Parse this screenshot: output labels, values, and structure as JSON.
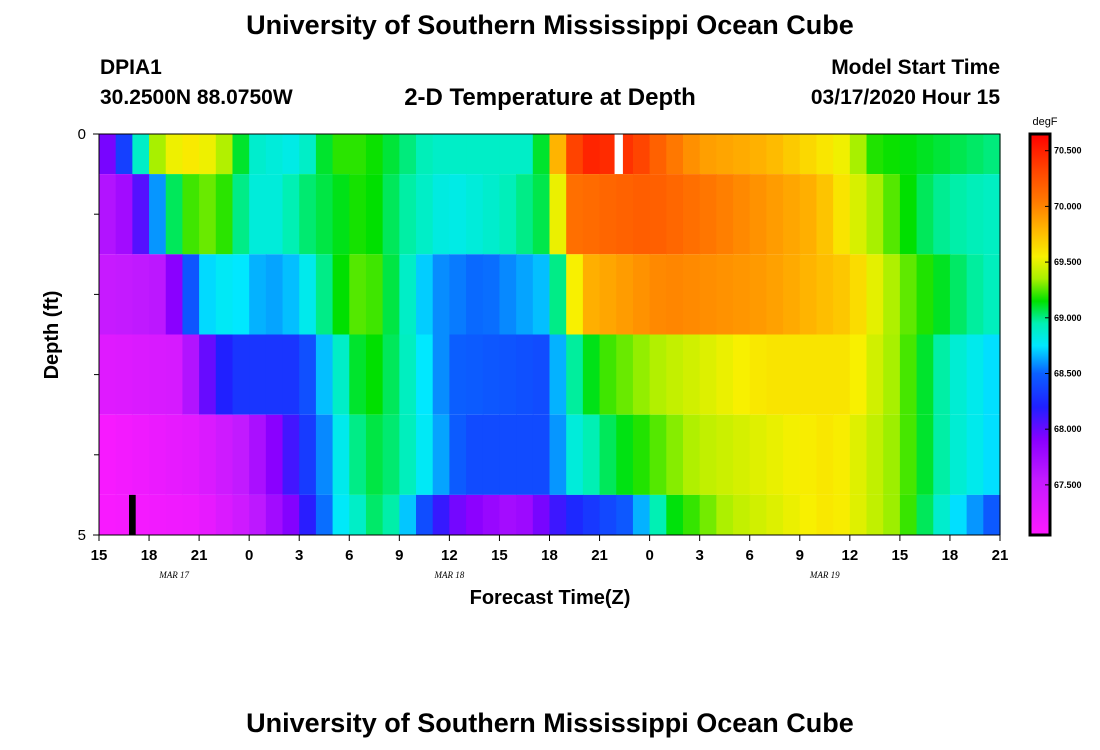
{
  "header": {
    "title": "University of Southern Mississippi Ocean Cube",
    "station": "DPIA1",
    "coords": "30.2500N 88.0750W",
    "subtitle": "2-D Temperature at Depth",
    "model_label": "Model Start Time",
    "model_time": "03/17/2020 Hour 15"
  },
  "footer": {
    "title": "University of Southern Mississippi Ocean Cube"
  },
  "chart_data": {
    "type": "heatmap",
    "title": "2-D Temperature at Depth",
    "xlabel": "Forecast Time(Z)",
    "ylabel": "Depth (ft)",
    "units": "degF",
    "x_start_hour": 0,
    "x_step_hours": 1,
    "x_range_hours": [
      0,
      54
    ],
    "x_tick_hours": [
      0,
      3,
      6,
      9,
      12,
      15,
      18,
      21,
      24,
      27,
      30,
      33,
      36,
      39,
      42,
      45,
      48,
      51,
      54
    ],
    "x_tick_labels": [
      "15",
      "18",
      "21",
      "0",
      "3",
      "6",
      "9",
      "12",
      "15",
      "18",
      "21",
      "0",
      "3",
      "6",
      "9",
      "12",
      "15",
      "18",
      "21"
    ],
    "date_labels": [
      {
        "text": "MAR 17",
        "hour": 4.5
      },
      {
        "text": "MAR 18",
        "hour": 21
      },
      {
        "text": "MAR 19",
        "hour": 43.5
      }
    ],
    "y_range_ft": [
      0,
      5
    ],
    "y_tick_labels": [
      {
        "value": 0,
        "text": "0"
      },
      {
        "value": 5,
        "text": "5"
      }
    ],
    "y_minor_ticks_ft": [
      1,
      2,
      3,
      4
    ],
    "depth_bands": [
      {
        "top": 0,
        "bottom": 0.5,
        "anchors": [
          [
            0,
            67.8
          ],
          [
            1,
            68.1
          ],
          [
            2,
            68.6
          ],
          [
            3,
            69.2
          ],
          [
            4,
            69.5
          ],
          [
            6,
            69.6
          ],
          [
            8,
            69.3
          ],
          [
            9,
            68.9
          ],
          [
            12,
            68.8
          ],
          [
            14,
            69.2
          ],
          [
            16,
            69.2
          ],
          [
            20,
            68.9
          ],
          [
            26,
            68.9
          ],
          [
            27,
            69.3
          ],
          [
            27.8,
            70.1
          ],
          [
            29,
            70.5
          ],
          [
            32,
            70.4
          ],
          [
            34,
            70.1
          ],
          [
            36,
            69.9
          ],
          [
            40,
            69.8
          ],
          [
            45,
            69.5
          ],
          [
            46,
            69.2
          ],
          [
            50,
            69.1
          ],
          [
            54,
            69.0
          ]
        ],
        "missing": [
          [
            30.9,
            31.4
          ]
        ]
      },
      {
        "top": 0.5,
        "bottom": 1.5,
        "anchors": [
          [
            0,
            67.6
          ],
          [
            2,
            67.8
          ],
          [
            3,
            68.3
          ],
          [
            4,
            68.9
          ],
          [
            5,
            69.2
          ],
          [
            7,
            69.3
          ],
          [
            9,
            68.9
          ],
          [
            10,
            68.8
          ],
          [
            12,
            69.0
          ],
          [
            14,
            69.1
          ],
          [
            16,
            69.2
          ],
          [
            18,
            69.0
          ],
          [
            21,
            68.8
          ],
          [
            24,
            68.9
          ],
          [
            27,
            69.1
          ],
          [
            27.6,
            69.6
          ],
          [
            28.5,
            70.1
          ],
          [
            33,
            70.2
          ],
          [
            38,
            70.0
          ],
          [
            43,
            69.8
          ],
          [
            46,
            69.4
          ],
          [
            50,
            69.0
          ],
          [
            54,
            68.9
          ]
        ],
        "missing": []
      },
      {
        "top": 1.5,
        "bottom": 2.5,
        "anchors": [
          [
            0,
            67.5
          ],
          [
            4,
            67.6
          ],
          [
            5,
            68.2
          ],
          [
            6,
            68.7
          ],
          [
            8,
            68.8
          ],
          [
            10,
            68.6
          ],
          [
            12,
            68.7
          ],
          [
            14,
            69.1
          ],
          [
            16,
            69.3
          ],
          [
            18,
            69.0
          ],
          [
            20,
            68.6
          ],
          [
            23,
            68.5
          ],
          [
            27,
            68.7
          ],
          [
            28,
            69.3
          ],
          [
            29,
            69.8
          ],
          [
            34,
            70.0
          ],
          [
            40,
            69.9
          ],
          [
            45,
            69.7
          ],
          [
            48,
            69.3
          ],
          [
            52,
            69.0
          ],
          [
            54,
            68.9
          ]
        ],
        "missing": []
      },
      {
        "top": 2.5,
        "bottom": 3.5,
        "anchors": [
          [
            0,
            67.3
          ],
          [
            5,
            67.4
          ],
          [
            6,
            67.9
          ],
          [
            8,
            68.3
          ],
          [
            12,
            68.3
          ],
          [
            14,
            68.8
          ],
          [
            16,
            69.2
          ],
          [
            18,
            69.0
          ],
          [
            21,
            68.5
          ],
          [
            27,
            68.4
          ],
          [
            28,
            68.9
          ],
          [
            30,
            69.2
          ],
          [
            34,
            69.4
          ],
          [
            40,
            69.6
          ],
          [
            45,
            69.6
          ],
          [
            48,
            69.3
          ],
          [
            51,
            68.9
          ],
          [
            54,
            68.7
          ]
        ],
        "missing": []
      },
      {
        "top": 3.5,
        "bottom": 4.5,
        "anchors": [
          [
            0,
            67.1
          ],
          [
            6,
            67.3
          ],
          [
            9,
            67.6
          ],
          [
            12,
            68.2
          ],
          [
            14,
            68.7
          ],
          [
            16,
            69.1
          ],
          [
            18,
            69.0
          ],
          [
            22,
            68.4
          ],
          [
            27,
            68.4
          ],
          [
            28,
            68.8
          ],
          [
            31,
            69.1
          ],
          [
            36,
            69.4
          ],
          [
            44,
            69.6
          ],
          [
            48,
            69.3
          ],
          [
            51,
            68.9
          ],
          [
            54,
            68.7
          ]
        ],
        "missing": []
      },
      {
        "top": 4.5,
        "bottom": 5,
        "anchors": [
          [
            0,
            67.1
          ],
          [
            6,
            67.2
          ],
          [
            9,
            67.5
          ],
          [
            12,
            68.0
          ],
          [
            14,
            68.7
          ],
          [
            17,
            69.1
          ],
          [
            21,
            68.0
          ],
          [
            25,
            67.7
          ],
          [
            28,
            68.2
          ],
          [
            32,
            68.5
          ],
          [
            34,
            69.1
          ],
          [
            38,
            69.4
          ],
          [
            44,
            69.6
          ],
          [
            48,
            69.3
          ],
          [
            51,
            68.8
          ],
          [
            54,
            68.4
          ]
        ],
        "missing": [
          [
            1.8,
            2.2
          ]
        ]
      }
    ],
    "colorbar": {
      "unit_label": "degF",
      "vmin": 67.05,
      "vmax": 70.65,
      "tick_values": [
        67.5,
        68.0,
        68.5,
        69.0,
        69.5,
        70.0,
        70.5
      ],
      "tick_labels": [
        "67.500",
        "68.000",
        "68.500",
        "69.000",
        "69.500",
        "70.000",
        "70.500"
      ],
      "color_stops": [
        [
          67.05,
          "#ff1aff"
        ],
        [
          67.55,
          "#c21aff"
        ],
        [
          67.9,
          "#8a00ff"
        ],
        [
          68.2,
          "#2020ff"
        ],
        [
          68.5,
          "#0a60ff"
        ],
        [
          68.75,
          "#00e8ff"
        ],
        [
          68.95,
          "#00f0b4"
        ],
        [
          69.15,
          "#00e000"
        ],
        [
          69.35,
          "#a8f000"
        ],
        [
          69.55,
          "#f8f000"
        ],
        [
          69.8,
          "#ffb400"
        ],
        [
          70.05,
          "#ff7800"
        ],
        [
          70.35,
          "#ff4000"
        ],
        [
          70.65,
          "#ff0000"
        ]
      ]
    }
  }
}
